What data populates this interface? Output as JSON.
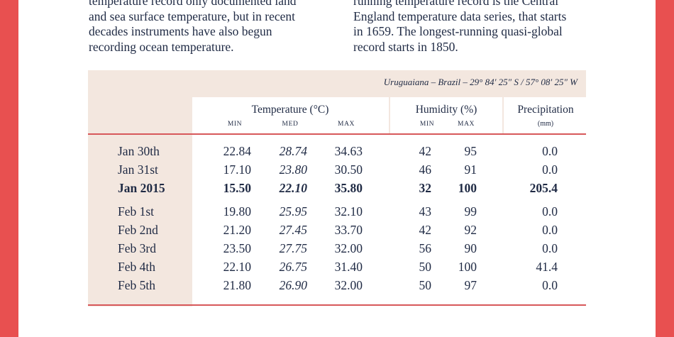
{
  "paragraphs": {
    "left": [
      "temperature record only documented land",
      "and sea surface temperature, but in recent",
      "decades instruments have also begun",
      "recording ocean temperature."
    ],
    "right": [
      "running temperature record is the Central",
      "England temperature data series, that starts",
      "in 1659. The longest-running quasi-global",
      "record starts in 1850."
    ]
  },
  "table": {
    "location": "Uruguaiana – Brazil – 29° 84′ 25″ S / 57° 08′ 25″ W",
    "headers": {
      "temperature": "Temperature (°C)",
      "humidity": "Humidity (%)",
      "precipitation": "Precipitation",
      "precip_unit": "(mm)",
      "min": "min",
      "med": "med",
      "max": "max",
      "h_min": "min",
      "h_max": "max"
    },
    "rows": [
      {
        "label": "Jan 30th",
        "t_min": "22.84",
        "t_med": "28.74",
        "t_max": "34.63",
        "h_min": "42",
        "h_max": "95",
        "precip": "0.0"
      },
      {
        "label": "Jan 31st",
        "t_min": "17.10",
        "t_med": "23.80",
        "t_max": "30.50",
        "h_min": "46",
        "h_max": "91",
        "precip": "0.0"
      },
      {
        "label": "Jan 2015",
        "t_min": "15.50",
        "t_med": "22.10",
        "t_max": "35.80",
        "h_min": "32",
        "h_max": "100",
        "precip": "205.4"
      },
      {
        "label": "Feb 1st",
        "t_min": "19.80",
        "t_med": "25.95",
        "t_max": "32.10",
        "h_min": "43",
        "h_max": "99",
        "precip": "0.0"
      },
      {
        "label": "Feb 2nd",
        "t_min": "21.20",
        "t_med": "27.45",
        "t_max": "33.70",
        "h_min": "42",
        "h_max": "92",
        "precip": "0.0"
      },
      {
        "label": "Feb 3rd",
        "t_min": "23.50",
        "t_med": "27.75",
        "t_max": "32.00",
        "h_min": "56",
        "h_max": "90",
        "precip": "0.0"
      },
      {
        "label": "Feb 4th",
        "t_min": "22.10",
        "t_med": "26.75",
        "t_max": "31.40",
        "h_min": "50",
        "h_max": "100",
        "precip": "41.4"
      },
      {
        "label": "Feb 5th",
        "t_min": "21.80",
        "t_med": "26.90",
        "t_max": "32.00",
        "h_min": "50",
        "h_max": "97",
        "precip": "0.0"
      }
    ]
  },
  "colors": {
    "accent": "#e85050",
    "panel": "#f3e7df",
    "text": "#1f2a44",
    "rule": "#d7585a"
  }
}
